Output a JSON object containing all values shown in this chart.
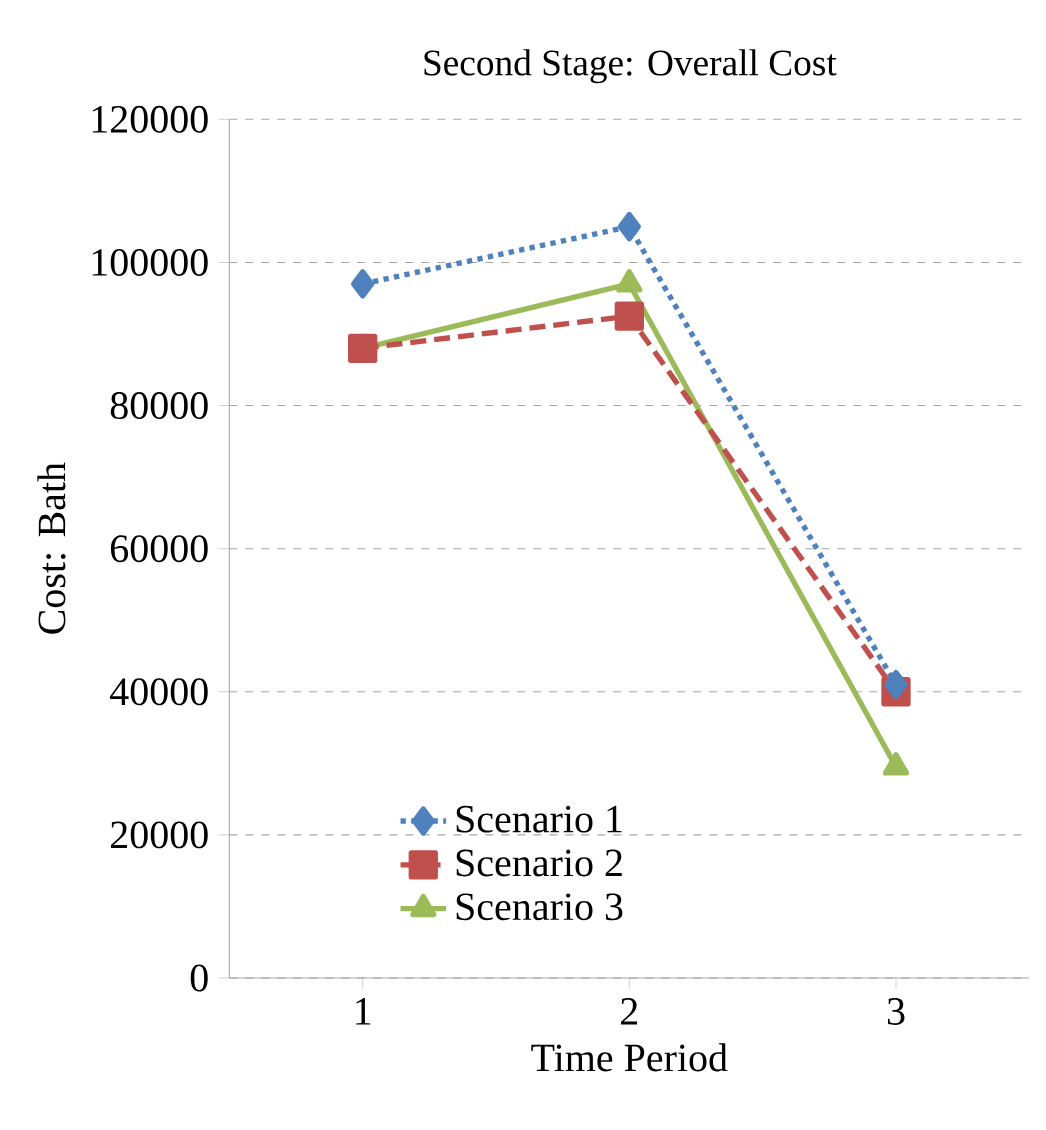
{
  "chart_data": {
    "type": "line",
    "title": "Second Stage:  Overall  Cost",
    "xlabel": "Time Period",
    "ylabel": "Cost: Bath",
    "categories": [
      "1",
      "2",
      "3"
    ],
    "series": [
      {
        "name": "Scenario 1",
        "color": "#4f81bd",
        "values": [
          97000,
          105000,
          41000
        ],
        "marker": "diamond",
        "line_style": "dotted"
      },
      {
        "name": "Scenario 2",
        "color": "#c0504d",
        "values": [
          88000,
          92500,
          40000
        ],
        "marker": "square",
        "line_style": "dashed"
      },
      {
        "name": "Scenario 3",
        "color": "#9bbb59",
        "values": [
          88000,
          97000,
          29500
        ],
        "marker": "triangle",
        "line_style": "solid"
      }
    ],
    "ylim": [
      0,
      120000
    ],
    "yticks": [
      0,
      20000,
      40000,
      60000,
      80000,
      100000,
      120000
    ],
    "grid": "y",
    "legend": "bottom left"
  }
}
